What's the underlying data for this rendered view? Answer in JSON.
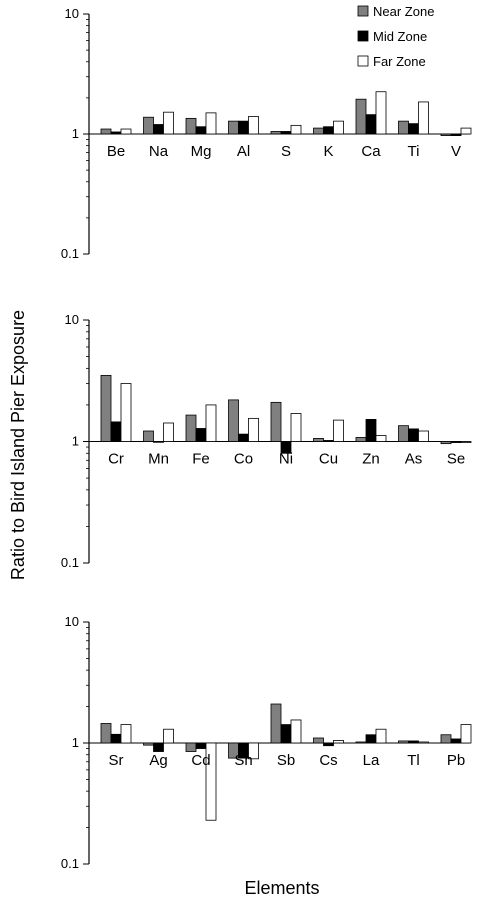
{
  "figure": {
    "ylabel": "Ratio to Bird Island Pier Exposure",
    "xlabel": "Elements"
  },
  "legend": {
    "items": [
      {
        "label": "Near Zone",
        "color": "#808080"
      },
      {
        "label": "Mid Zone",
        "color": "#000000"
      },
      {
        "label": "Far Zone",
        "color": "#ffffff"
      }
    ]
  },
  "chart_data": [
    {
      "type": "bar",
      "yscale": "log",
      "ylim": [
        0.1,
        10
      ],
      "yticks": [
        "10",
        "1",
        "0.1"
      ],
      "categories": [
        "Be",
        "Na",
        "Mg",
        "Al",
        "S",
        "K",
        "Ca",
        "Ti",
        "V"
      ],
      "series": [
        {
          "name": "Near Zone",
          "values": [
            1.1,
            1.38,
            1.35,
            1.28,
            1.05,
            1.12,
            1.95,
            1.28,
            0.97
          ]
        },
        {
          "name": "Mid Zone",
          "values": [
            1.04,
            1.2,
            1.15,
            1.28,
            1.05,
            1.15,
            1.45,
            1.22,
            0.97
          ]
        },
        {
          "name": "Far Zone",
          "values": [
            1.1,
            1.52,
            1.5,
            1.4,
            1.18,
            1.28,
            2.25,
            1.85,
            1.12
          ]
        }
      ]
    },
    {
      "type": "bar",
      "yscale": "log",
      "ylim": [
        0.1,
        10
      ],
      "yticks": [
        "10",
        "1",
        "0.1"
      ],
      "categories": [
        "Cr",
        "Mn",
        "Fe",
        "Co",
        "Ni",
        "Cu",
        "Zn",
        "As",
        "Se"
      ],
      "series": [
        {
          "name": "Near Zone",
          "values": [
            3.5,
            1.22,
            1.65,
            2.2,
            2.1,
            1.06,
            1.08,
            1.35,
            0.96
          ]
        },
        {
          "name": "Mid Zone",
          "values": [
            1.45,
            1.0,
            1.28,
            1.15,
            0.8,
            1.02,
            1.52,
            1.27,
            0.98
          ]
        },
        {
          "name": "Far Zone",
          "values": [
            3.0,
            1.42,
            2.0,
            1.55,
            1.7,
            1.5,
            1.12,
            1.22,
            0.98
          ]
        }
      ]
    },
    {
      "type": "bar",
      "yscale": "log",
      "ylim": [
        0.1,
        10
      ],
      "yticks": [
        "10",
        "1",
        "0.1"
      ],
      "categories": [
        "Sr",
        "Ag",
        "Cd",
        "Sn",
        "Sb",
        "Cs",
        "La",
        "Tl",
        "Pb"
      ],
      "series": [
        {
          "name": "Near Zone",
          "values": [
            1.45,
            0.96,
            0.85,
            0.75,
            2.1,
            1.1,
            1.02,
            1.04,
            1.17
          ]
        },
        {
          "name": "Mid Zone",
          "values": [
            1.18,
            0.85,
            0.9,
            0.75,
            1.42,
            0.95,
            1.17,
            1.04,
            1.08
          ]
        },
        {
          "name": "Far Zone",
          "values": [
            1.42,
            1.3,
            0.23,
            0.74,
            1.55,
            1.05,
            1.3,
            1.02,
            1.42
          ]
        }
      ]
    }
  ]
}
